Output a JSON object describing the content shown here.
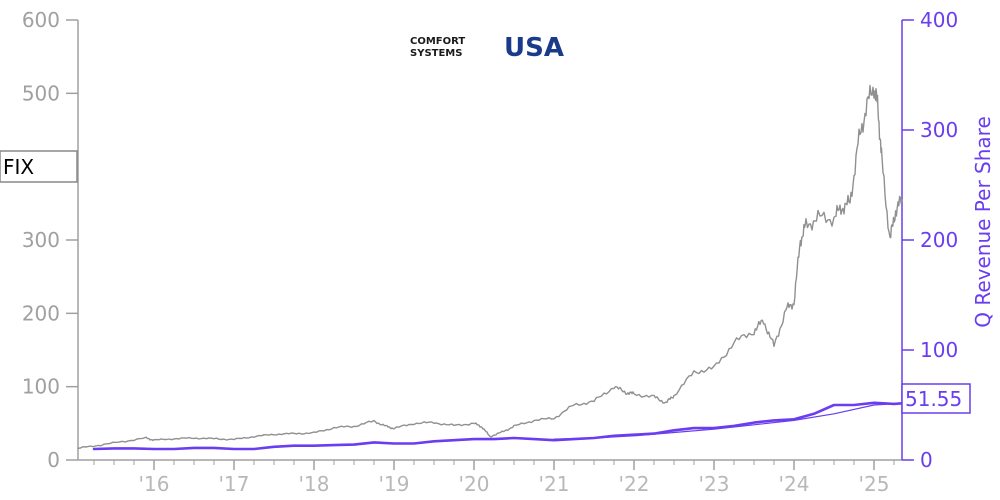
{
  "chart_data": {
    "type": "line",
    "ticker": "FIX",
    "logo_text": [
      "COMFORT",
      "SYSTEMS",
      "USA"
    ],
    "ylabel_right": "Q Revenue Per Share",
    "last_value_label": "51.55",
    "y_left": {
      "range": [
        0,
        600
      ],
      "ticks": [
        0,
        100,
        200,
        300,
        500,
        600
      ]
    },
    "y_right": {
      "range": [
        0,
        400
      ],
      "ticks": [
        0,
        100,
        200,
        300,
        400
      ]
    },
    "x_range": [
      2015.05,
      2025.35
    ],
    "x_ticks": [
      {
        "value": 2016,
        "label": "'16"
      },
      {
        "value": 2017,
        "label": "'17"
      },
      {
        "value": 2018,
        "label": "'18"
      },
      {
        "value": 2019,
        "label": "'19"
      },
      {
        "value": 2020,
        "label": "'20"
      },
      {
        "value": 2021,
        "label": "'21"
      },
      {
        "value": 2022,
        "label": "'22"
      },
      {
        "value": 2023,
        "label": "'23"
      },
      {
        "value": 2024,
        "label": "'24"
      },
      {
        "value": 2025,
        "label": "'25"
      }
    ],
    "series": [
      {
        "axis": "left",
        "color": "#909090",
        "points": [
          [
            2015.05,
            16
          ],
          [
            2015.3,
            20
          ],
          [
            2015.6,
            25
          ],
          [
            2015.9,
            30
          ],
          [
            2016.0,
            27
          ],
          [
            2016.25,
            29
          ],
          [
            2016.5,
            30
          ],
          [
            2016.75,
            29
          ],
          [
            2017.0,
            28
          ],
          [
            2017.25,
            32
          ],
          [
            2017.5,
            35
          ],
          [
            2017.75,
            36
          ],
          [
            2018.0,
            37
          ],
          [
            2018.25,
            44
          ],
          [
            2018.5,
            46
          ],
          [
            2018.75,
            53
          ],
          [
            2018.9,
            46
          ],
          [
            2019.0,
            43
          ],
          [
            2019.25,
            50
          ],
          [
            2019.5,
            51
          ],
          [
            2019.75,
            47
          ],
          [
            2020.0,
            50
          ],
          [
            2020.1,
            45
          ],
          [
            2020.2,
            32
          ],
          [
            2020.35,
            38
          ],
          [
            2020.5,
            46
          ],
          [
            2020.75,
            54
          ],
          [
            2021.0,
            57
          ],
          [
            2021.25,
            75
          ],
          [
            2021.5,
            80
          ],
          [
            2021.75,
            100
          ],
          [
            2021.9,
            92
          ],
          [
            2022.0,
            90
          ],
          [
            2022.25,
            86
          ],
          [
            2022.4,
            78
          ],
          [
            2022.5,
            88
          ],
          [
            2022.75,
            120
          ],
          [
            2023.0,
            125
          ],
          [
            2023.25,
            160
          ],
          [
            2023.5,
            176
          ],
          [
            2023.62,
            190
          ],
          [
            2023.75,
            155
          ],
          [
            2023.9,
            205
          ],
          [
            2024.0,
            215
          ],
          [
            2024.08,
            300
          ],
          [
            2024.15,
            320
          ],
          [
            2024.3,
            330
          ],
          [
            2024.5,
            330
          ],
          [
            2024.6,
            345
          ],
          [
            2024.7,
            350
          ],
          [
            2024.8,
            430
          ],
          [
            2024.9,
            480
          ],
          [
            2025.0,
            510
          ],
          [
            2025.05,
            480
          ],
          [
            2025.1,
            405
          ],
          [
            2025.2,
            300
          ],
          [
            2025.27,
            340
          ],
          [
            2025.35,
            355
          ]
        ]
      },
      {
        "axis": "right",
        "color": "#6a3df0",
        "points": [
          [
            2015.25,
            10
          ],
          [
            2015.5,
            10.5
          ],
          [
            2015.75,
            10.5
          ],
          [
            2016.0,
            10
          ],
          [
            2016.25,
            10
          ],
          [
            2016.5,
            11
          ],
          [
            2016.75,
            11
          ],
          [
            2017.0,
            10
          ],
          [
            2017.25,
            10
          ],
          [
            2017.5,
            12
          ],
          [
            2017.75,
            13
          ],
          [
            2018.0,
            13
          ],
          [
            2018.25,
            13.5
          ],
          [
            2018.5,
            14
          ],
          [
            2018.75,
            16
          ],
          [
            2019.0,
            15
          ],
          [
            2019.25,
            15
          ],
          [
            2019.5,
            17
          ],
          [
            2019.75,
            18
          ],
          [
            2020.0,
            19
          ],
          [
            2020.25,
            19
          ],
          [
            2020.5,
            20
          ],
          [
            2020.75,
            19
          ],
          [
            2021.0,
            18
          ],
          [
            2021.25,
            19
          ],
          [
            2021.5,
            20
          ],
          [
            2021.75,
            22
          ],
          [
            2022.0,
            23
          ],
          [
            2022.25,
            24
          ],
          [
            2022.5,
            27
          ],
          [
            2022.75,
            29
          ],
          [
            2023.0,
            29
          ],
          [
            2023.25,
            31
          ],
          [
            2023.5,
            34
          ],
          [
            2023.75,
            36
          ],
          [
            2024.0,
            37
          ],
          [
            2024.25,
            42
          ],
          [
            2024.5,
            50
          ],
          [
            2024.75,
            50
          ],
          [
            2025.0,
            52
          ],
          [
            2025.25,
            51
          ],
          [
            2025.35,
            51.55
          ]
        ]
      },
      {
        "axis": "right",
        "color": "#6a3df0",
        "points": [
          [
            2021.0,
            19
          ],
          [
            2021.5,
            20
          ],
          [
            2022.0,
            22
          ],
          [
            2022.5,
            25
          ],
          [
            2023.0,
            28
          ],
          [
            2023.5,
            32
          ],
          [
            2024.0,
            36
          ],
          [
            2024.5,
            42
          ],
          [
            2025.0,
            50
          ],
          [
            2025.35,
            51.55
          ]
        ]
      }
    ]
  }
}
